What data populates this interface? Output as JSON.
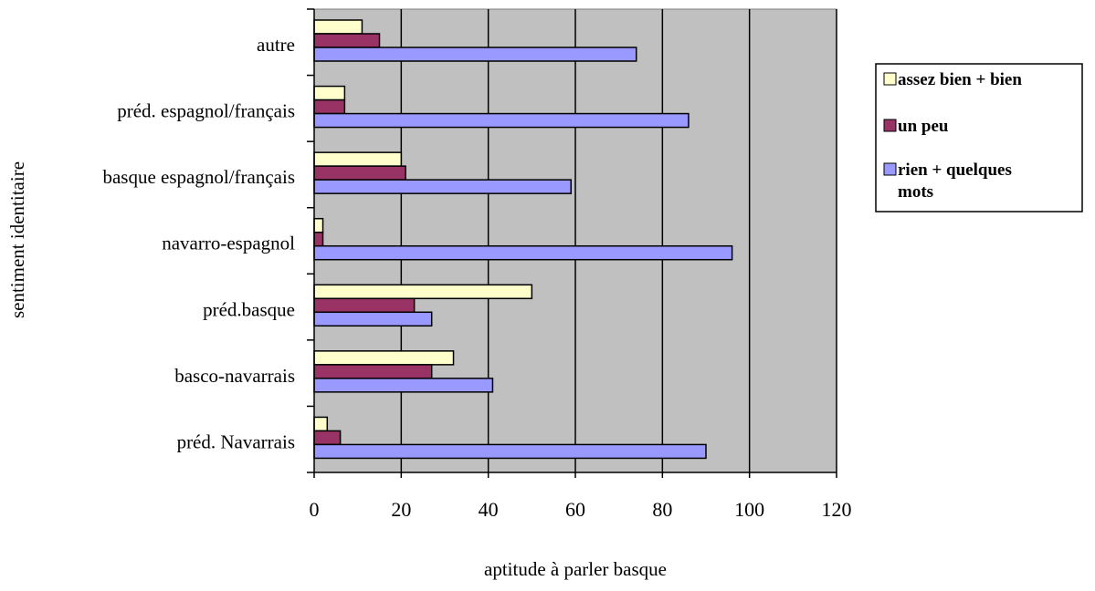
{
  "chart_data": {
    "type": "bar",
    "orientation": "horizontal",
    "title": "",
    "xlabel": "aptitude à parler basque",
    "ylabel": "sentiment identitaire",
    "xlim": [
      0,
      120
    ],
    "xticks": [
      "0",
      "20",
      "40",
      "60",
      "80",
      "100",
      "120"
    ],
    "grid": "vertical",
    "legend_position": "right",
    "plot_background": "#c0c0c0",
    "categories": [
      "autre",
      "préd. espagnol/français",
      "basque espagnol/français",
      "navarro-espagnol",
      "préd.basque",
      "basco-navarrais",
      "préd. Navarrais"
    ],
    "series": [
      {
        "name": "assez bien + bien",
        "color": "#ffffcc",
        "values": [
          11,
          7,
          20,
          2,
          50,
          32,
          3
        ]
      },
      {
        "name": "un peu",
        "color": "#993366",
        "values": [
          15,
          7,
          21,
          2,
          23,
          27,
          6
        ]
      },
      {
        "name": "rien + quelques mots",
        "color": "#9999ff",
        "values": [
          74,
          86,
          59,
          96,
          27,
          41,
          90
        ]
      }
    ]
  }
}
